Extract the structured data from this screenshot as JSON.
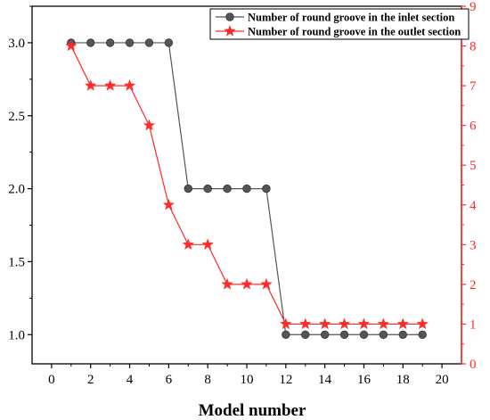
{
  "chart_data": {
    "type": "line",
    "title": "",
    "xlabel": "Model number",
    "ylabel": "",
    "y2label": "",
    "xlim": [
      -1,
      21
    ],
    "xticks": [
      0,
      2,
      4,
      6,
      8,
      10,
      12,
      14,
      16,
      18,
      20
    ],
    "xtick_labels": [
      "0",
      "2",
      "4",
      "6",
      "8",
      "10",
      "12",
      "14",
      "16",
      "18",
      "20"
    ],
    "ylim": [
      0.8,
      3.25
    ],
    "yticks": [
      1.0,
      1.5,
      2.0,
      2.5,
      3.0
    ],
    "ytick_labels": [
      "1.0",
      "1.5",
      "2.0",
      "2.5",
      "3.0"
    ],
    "y2lim": [
      0,
      9
    ],
    "y2ticks": [
      0,
      1,
      2,
      3,
      4,
      5,
      6,
      7,
      8,
      9
    ],
    "y2tick_labels": [
      "0",
      "1",
      "2",
      "3",
      "4",
      "5",
      "6",
      "7",
      "8",
      "9"
    ],
    "legend_position": "top-right",
    "grid": false,
    "x": [
      1,
      2,
      3,
      4,
      5,
      6,
      7,
      8,
      9,
      10,
      11,
      12,
      13,
      14,
      15,
      16,
      17,
      18,
      19
    ],
    "series": [
      {
        "name": "Number of round groove in the inlet section",
        "axis": "left",
        "marker": "circle",
        "color": "#555555",
        "values": [
          3,
          3,
          3,
          3,
          3,
          3,
          2,
          2,
          2,
          2,
          2,
          1,
          1,
          1,
          1,
          1,
          1,
          1,
          1
        ]
      },
      {
        "name": "Number of round groove in the outlet section",
        "axis": "right",
        "marker": "star",
        "color": "#ff2a2a",
        "values": [
          8,
          7,
          7,
          7,
          6,
          4,
          3,
          3,
          2,
          2,
          2,
          1,
          1,
          1,
          1,
          1,
          1,
          1,
          1
        ]
      }
    ]
  }
}
